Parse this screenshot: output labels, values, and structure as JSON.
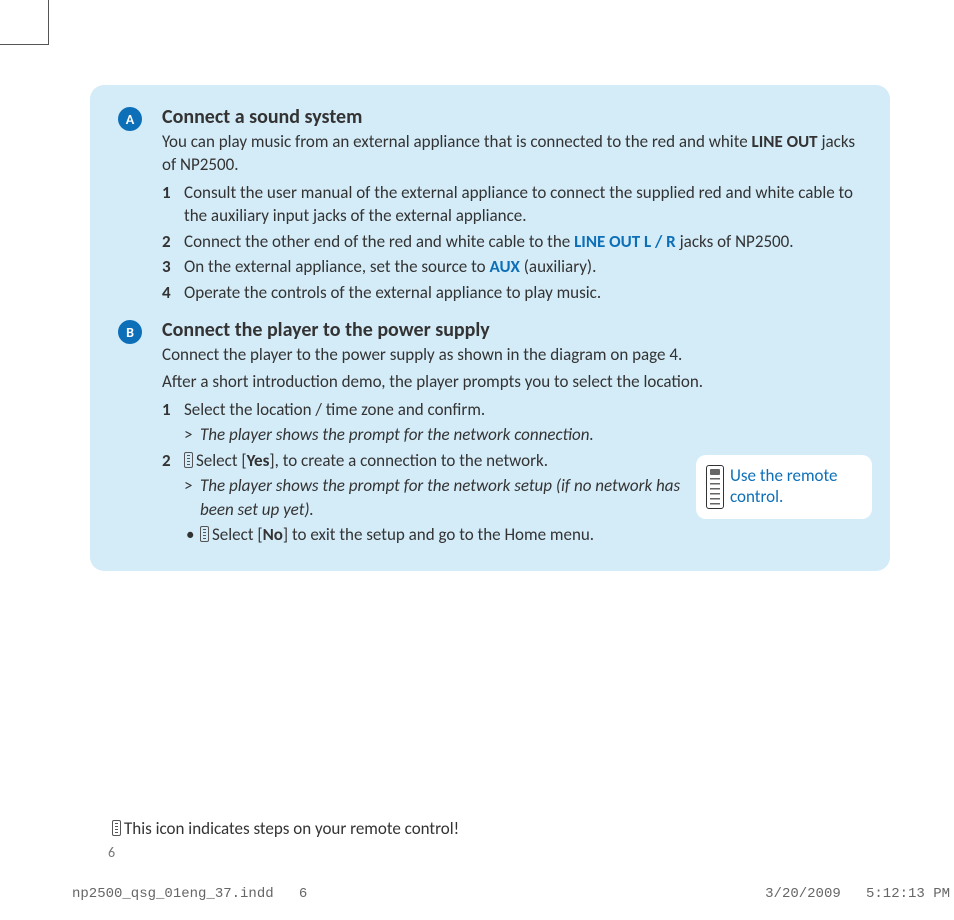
{
  "colors": {
    "panel_bg": "#d4ecf8",
    "badge_bg": "#0d6fb8",
    "badge_text": "#ffffff",
    "body_text": "#333333",
    "link_blue": "#0d6fb8",
    "page_bg": "#ffffff",
    "footer_text": "#666666"
  },
  "typography": {
    "body_family": "Gill Sans",
    "body_size_pt": 12,
    "title_size_pt": 15,
    "mono_family": "Courier New"
  },
  "sectionA": {
    "badge": "A",
    "title": "Connect a sound system",
    "intro_prefix": "You can play music from an external appliance that is connected to the red and white ",
    "intro_bold": "LINE OUT",
    "intro_suffix": " jacks of NP2500.",
    "steps": {
      "s1": {
        "n": "1",
        "text": "Consult the user manual of the external appliance to connect the supplied red and white cable to the auxiliary input jacks of the external appliance."
      },
      "s2": {
        "n": "2",
        "pre": "Connect the other end of the red and white cable to the ",
        "hl": "LINE OUT L / R",
        "post": " jacks of NP2500."
      },
      "s3": {
        "n": "3",
        "pre": "On the external appliance, set the source to ",
        "hl": "AUX",
        "post": " (auxiliary)."
      },
      "s4": {
        "n": "4",
        "text": "Operate the controls of the external appliance to play music."
      }
    }
  },
  "sectionB": {
    "badge": "B",
    "title": "Connect the player to the power supply",
    "intro1": "Connect the player to the power supply as shown in the diagram on page 4.",
    "intro2": "After a short introduction demo, the player prompts you to select the location.",
    "steps": {
      "s1": {
        "n": "1",
        "text": "Select the location / time zone and confirm.",
        "sub_gt": ">",
        "sub_text": "The player shows the prompt for the network connection."
      },
      "s2": {
        "n": "2",
        "pre": "Select [",
        "bold": "Yes",
        "post": "], to create a connection to the network.",
        "sub_gt": ">",
        "sub_text": "The player shows the prompt for the network setup (if no network has been set up yet).",
        "bullet_dot": "•",
        "bullet_pre": "Select [",
        "bullet_bold": "No",
        "bullet_post": "] to exit the setup and go to the Home menu."
      }
    }
  },
  "callout": {
    "text": "Use the remote control."
  },
  "footnote": "This icon indicates steps on your remote control!",
  "page_number": "6",
  "footer": {
    "file": "np2500_qsg_01eng_37.indd",
    "page": "6",
    "date": "3/20/2009",
    "time": "5:12:13 PM"
  }
}
